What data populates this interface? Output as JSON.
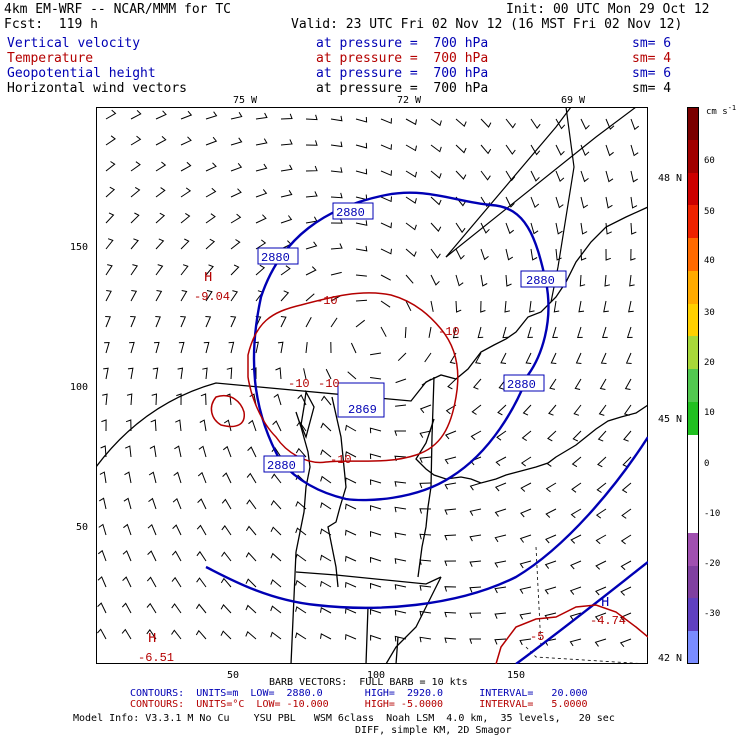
{
  "header": {
    "model": "4km EM-WRF -- NCAR/MMM for TC",
    "init": "Init: 00 UTC Mon 29 Oct 12",
    "fcst": "Fcst:  119 h",
    "valid": "Valid: 23 UTC Fri 02 Nov 12 (16 MST Fri 02 Nov 12)"
  },
  "fields": [
    {
      "name": "Vertical velocity",
      "level": "at pressure =  700 hPa",
      "sm": "sm= 6",
      "color": "#0000b4"
    },
    {
      "name": "Temperature",
      "level": "at pressure =  700 hPa",
      "sm": "sm= 4",
      "color": "#b40000"
    },
    {
      "name": "Geopotential height",
      "level": "at pressure =  700 hPa",
      "sm": "sm= 6",
      "color": "#0000b4"
    },
    {
      "name": "Horizontal wind vectors",
      "level": "at pressure =  700 hPa",
      "sm": "sm= 4",
      "color": "#000000"
    }
  ],
  "lon_labels": [
    "75 W",
    "72 W",
    "69 W"
  ],
  "lat_labels": [
    "48 N",
    "45 N",
    "42 N"
  ],
  "grid_y_labels": [
    "150",
    "100",
    "50"
  ],
  "grid_x_labels": [
    "50",
    "100",
    "150"
  ],
  "colorbar": {
    "unit": "cm s",
    "unit_sup": "-1",
    "ticks": [
      "60",
      "50",
      "40",
      "30",
      "20",
      "10",
      "0",
      "-10",
      "-20",
      "-30"
    ],
    "colors": [
      "#7a0000",
      "#a00000",
      "#cc0000",
      "#ee2200",
      "#ff6a00",
      "#ffaa00",
      "#ffd000",
      "#a8d83a",
      "#52c850",
      "#20c020",
      "#ffffff",
      "#ffffff",
      "#ffffff",
      "#a050b0",
      "#8040a0",
      "#6040c0",
      "#7a8cff"
    ]
  },
  "height_labels": [
    "2880",
    "2880",
    "2880",
    "2880",
    "2880",
    "2869"
  ],
  "temp_labels": [
    "-10",
    "-10",
    "-10",
    "-10",
    "-10",
    "-5"
  ],
  "pressure_centers": [
    {
      "letter": "H",
      "value": "-9.04"
    },
    {
      "letter": "H",
      "value": "-6.51"
    },
    {
      "letter": "H",
      "value": "-4.74"
    }
  ],
  "footer": {
    "barb": "BARB VECTORS:  FULL BARB = 10 kts",
    "contours1": "CONTOURS:  UNITS=m  LOW=  2880.0       HIGH=  2920.0      INTERVAL=   20.000",
    "contours2": "CONTOURS:  UNITS=°C  LOW= -10.000      HIGH= -5.0000      INTERVAL=   5.0000",
    "model_info": "Model Info: V3.3.1 M No Cu    YSU PBL   WSM 6class  Noah LSM  4.0 km,  35 levels,   20 sec",
    "model_info2": "DIFF, simple KM, 2D Smagor"
  }
}
